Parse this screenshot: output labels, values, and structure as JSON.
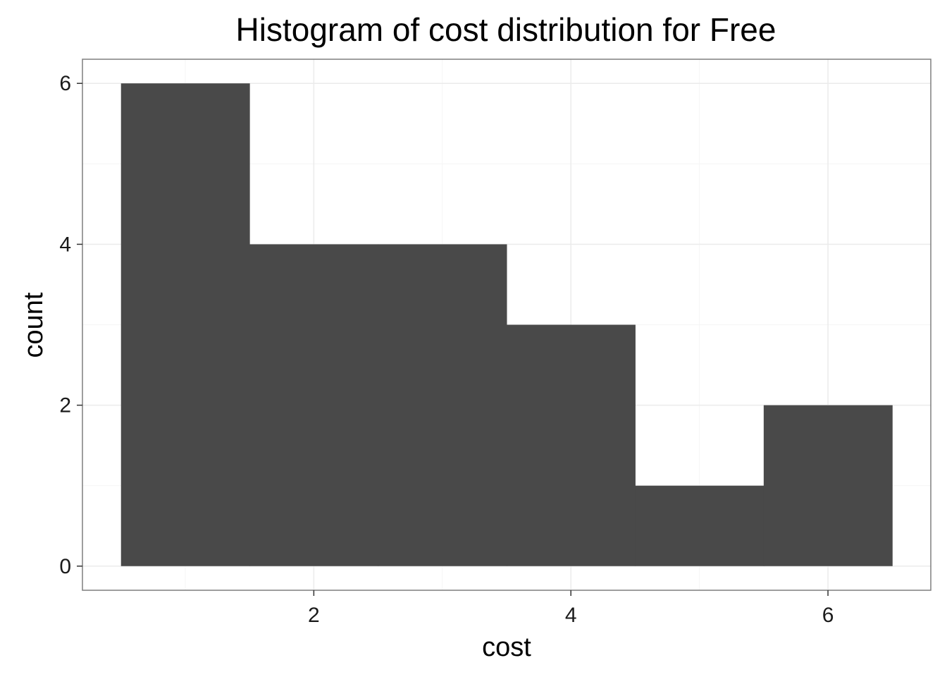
{
  "chart_data": {
    "type": "bar",
    "title": "Histogram of cost distribution for Free",
    "xlabel": "cost",
    "ylabel": "count",
    "bins": [
      {
        "x0": 0.5,
        "x1": 1.5,
        "count": 6
      },
      {
        "x0": 1.5,
        "x1": 2.5,
        "count": 4
      },
      {
        "x0": 2.5,
        "x1": 3.5,
        "count": 4
      },
      {
        "x0": 3.5,
        "x1": 4.5,
        "count": 3
      },
      {
        "x0": 4.5,
        "x1": 5.5,
        "count": 1
      },
      {
        "x0": 5.5,
        "x1": 6.5,
        "count": 2
      }
    ],
    "xlim": [
      0.2,
      6.8
    ],
    "ylim": [
      -0.3,
      6.3
    ],
    "x_ticks": [
      {
        "value": 2,
        "label": "2"
      },
      {
        "value": 4,
        "label": "4"
      },
      {
        "value": 6,
        "label": "6"
      }
    ],
    "y_ticks": [
      {
        "value": 0,
        "label": "0"
      },
      {
        "value": 2,
        "label": "2"
      },
      {
        "value": 4,
        "label": "4"
      },
      {
        "value": 6,
        "label": "6"
      }
    ],
    "x_minor": [
      1,
      3,
      5
    ],
    "y_minor": [
      1,
      3,
      5
    ],
    "grid": true,
    "colors": {
      "bar": "#494949",
      "grid_major": "#ebebeb",
      "grid_minor": "#f5f5f5",
      "panel_border": "#7f7f7f",
      "tick": "#333333"
    }
  }
}
